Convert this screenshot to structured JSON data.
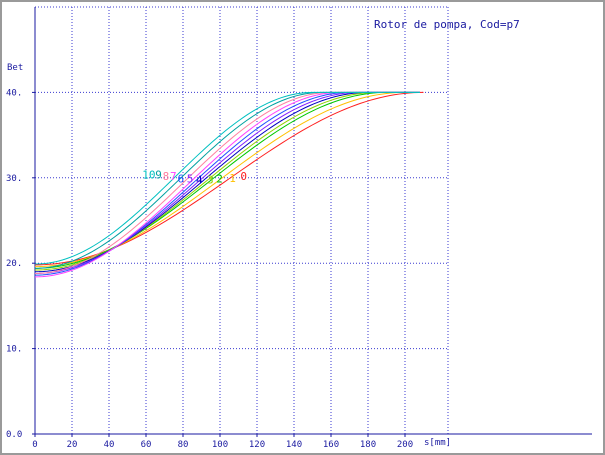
{
  "chart_data": {
    "type": "line",
    "title": "Rotor de pompa, Cod=p7",
    "ylabel": "Bet",
    "xlabel": "s[mm]",
    "xlim": [
      0,
      220
    ],
    "ylim": [
      0,
      50
    ],
    "xticks": [
      0,
      20,
      40,
      60,
      80,
      100,
      120,
      140,
      160,
      180,
      200
    ],
    "yticks": [
      0,
      10,
      20,
      30,
      40
    ],
    "ytick_labels": [
      "0.0",
      "10.",
      "20.",
      "30.",
      "40."
    ],
    "grid": true,
    "series": [
      {
        "name": "0",
        "color": "#ff2020",
        "y_start": 19.8,
        "s_end": 210,
        "label_x": 111,
        "label_y": 30.2
      },
      {
        "name": "1",
        "color": "#ffc000",
        "y_start": 19.6,
        "s_end": 200,
        "label_x": 105,
        "label_y": 30.0
      },
      {
        "name": "2",
        "color": "#00c800",
        "y_start": 19.4,
        "s_end": 190,
        "label_x": 98,
        "label_y": 29.9
      },
      {
        "name": "3",
        "color": "#90d000",
        "y_start": 19.2,
        "s_end": 185,
        "label_x": 93,
        "label_y": 29.8
      },
      {
        "name": "4",
        "color": "#0000c0",
        "y_start": 19.0,
        "s_end": 180,
        "label_x": 87,
        "label_y": 29.8
      },
      {
        "name": "5",
        "color": "#8020ff",
        "y_start": 18.8,
        "s_end": 175,
        "label_x": 82,
        "label_y": 29.9
      },
      {
        "name": "6",
        "color": "#2050ff",
        "y_start": 18.6,
        "s_end": 170,
        "label_x": 77,
        "label_y": 29.9
      },
      {
        "name": "7",
        "color": "#ff40ff",
        "y_start": 18.4,
        "s_end": 165,
        "label_x": 73,
        "label_y": 30.2
      },
      {
        "name": "8",
        "color": "#ff80a0",
        "y_start": 18.8,
        "s_end": 160,
        "label_x": 69,
        "label_y": 30.2
      },
      {
        "name": "9",
        "color": "#00a0a0",
        "y_start": 19.4,
        "s_end": 155,
        "label_x": 65,
        "label_y": 30.4
      },
      {
        "name": "10",
        "color": "#00c0c0",
        "y_start": 19.9,
        "s_end": 150,
        "label_x": 58,
        "label_y": 30.4
      }
    ],
    "y_end": 40
  }
}
